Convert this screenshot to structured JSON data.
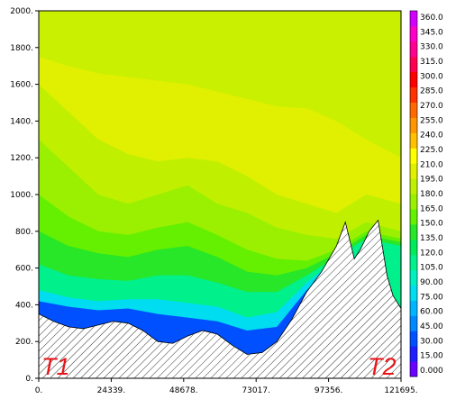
{
  "chart_data": {
    "type": "heatmap",
    "title": "",
    "xlabel": "",
    "ylabel": "",
    "xlim": [
      0,
      121695
    ],
    "ylim": [
      0,
      2000
    ],
    "x_ticks": [
      "0.",
      "24339.",
      "48678.",
      "73017.",
      "97356.",
      "121695."
    ],
    "x_tick_values": [
      0,
      24339,
      48678,
      73017,
      97356,
      121695
    ],
    "y_ticks": [
      "0.",
      "200.",
      "400.",
      "600.",
      "800.",
      "1000.",
      "1200.",
      "1400.",
      "1600.",
      "1800.",
      "2000."
    ],
    "y_tick_values": [
      0,
      200,
      400,
      600,
      800,
      1000,
      1200,
      1400,
      1600,
      1800,
      2000
    ],
    "colorbar": {
      "ticks": [
        "0.000",
        "15.00",
        "30.00",
        "45.00",
        "60.00",
        "75.00",
        "90.00",
        "105.0",
        "120.0",
        "135.0",
        "150.0",
        "165.0",
        "180.0",
        "195.0",
        "210.0",
        "225.0",
        "240.0",
        "255.0",
        "270.0",
        "285.0",
        "300.0",
        "315.0",
        "330.0",
        "345.0",
        "360.0"
      ],
      "values": [
        0,
        15,
        30,
        45,
        60,
        75,
        90,
        105,
        120,
        135,
        150,
        165,
        180,
        195,
        210,
        225,
        240,
        255,
        270,
        285,
        300,
        315,
        330,
        345,
        360
      ],
      "colors": [
        "#6a00ff",
        "#1e1eff",
        "#0050ff",
        "#0088ff",
        "#00b4ff",
        "#00dcf0",
        "#00f0c0",
        "#00f08c",
        "#00eb5a",
        "#28e628",
        "#64f000",
        "#9af000",
        "#c0f000",
        "#e0f000",
        "#ffff00",
        "#ffc000",
        "#ff9600",
        "#ff6a00",
        "#ff3200",
        "#ff0000",
        "#ff0050",
        "#ff0090",
        "#ff00c8",
        "#d200ff"
      ]
    },
    "terrain": {
      "x": [
        0,
        5000,
        10000,
        15000,
        20000,
        25000,
        30000,
        35000,
        40000,
        45000,
        50000,
        55000,
        60000,
        65000,
        70000,
        75000,
        80000,
        85000,
        90000,
        95000,
        100000,
        103000,
        106000,
        108000,
        111000,
        114000,
        117000,
        119000,
        121695
      ],
      "y": [
        350,
        310,
        280,
        270,
        290,
        310,
        300,
        260,
        200,
        190,
        230,
        260,
        240,
        180,
        130,
        140,
        200,
        320,
        470,
        580,
        720,
        850,
        650,
        700,
        800,
        860,
        560,
        450,
        380
      ]
    },
    "contours": [
      {
        "level": 195,
        "x": [
          0,
          10000,
          20000,
          30000,
          40000,
          50000,
          60000,
          70000,
          80000,
          90000,
          100000,
          110000,
          121695
        ],
        "y": [
          1750,
          1700,
          1660,
          1640,
          1620,
          1600,
          1560,
          1520,
          1480,
          1470,
          1400,
          1300,
          1200
        ]
      },
      {
        "level": 180,
        "x": [
          0,
          10000,
          20000,
          30000,
          40000,
          50000,
          60000,
          70000,
          80000,
          90000,
          100000,
          110000,
          121695
        ],
        "y": [
          1600,
          1450,
          1300,
          1220,
          1180,
          1200,
          1180,
          1100,
          1000,
          950,
          900,
          1000,
          950
        ]
      },
      {
        "level": 165,
        "x": [
          0,
          10000,
          20000,
          30000,
          40000,
          50000,
          60000,
          70000,
          80000,
          90000,
          100000,
          110000,
          121695
        ],
        "y": [
          1300,
          1150,
          1000,
          950,
          1000,
          1050,
          950,
          900,
          820,
          780,
          760,
          850,
          800
        ]
      },
      {
        "level": 150,
        "x": [
          0,
          10000,
          20000,
          30000,
          40000,
          50000,
          60000,
          70000,
          80000,
          90000,
          100000,
          110000,
          121695
        ],
        "y": [
          1000,
          880,
          800,
          780,
          820,
          850,
          780,
          700,
          650,
          640,
          700,
          800,
          760
        ]
      },
      {
        "level": 135,
        "x": [
          0,
          10000,
          20000,
          30000,
          40000,
          50000,
          60000,
          70000,
          80000,
          90000,
          100000,
          110000,
          121695
        ],
        "y": [
          800,
          720,
          680,
          660,
          700,
          720,
          660,
          580,
          560,
          600,
          680,
          780,
          740
        ]
      },
      {
        "level": 105,
        "x": [
          0,
          10000,
          20000,
          30000,
          40000,
          50000,
          60000,
          70000,
          80000,
          90000,
          100000,
          110000,
          121695
        ],
        "y": [
          620,
          560,
          540,
          530,
          560,
          560,
          520,
          470,
          470,
          560,
          660,
          760,
          720
        ]
      },
      {
        "level": 75,
        "x": [
          0,
          10000,
          20000,
          30000,
          40000,
          50000,
          60000,
          70000,
          80000,
          90000,
          100000
        ],
        "y": [
          480,
          440,
          420,
          430,
          430,
          410,
          390,
          330,
          360,
          520,
          650
        ]
      },
      {
        "level": 30,
        "x": [
          0,
          10000,
          20000,
          30000,
          40000,
          50000,
          60000,
          70000,
          80000,
          90000,
          100000
        ],
        "y": [
          420,
          390,
          370,
          380,
          350,
          330,
          310,
          260,
          280,
          480,
          620
        ]
      }
    ],
    "annotations": [
      "T1",
      "T2"
    ]
  }
}
